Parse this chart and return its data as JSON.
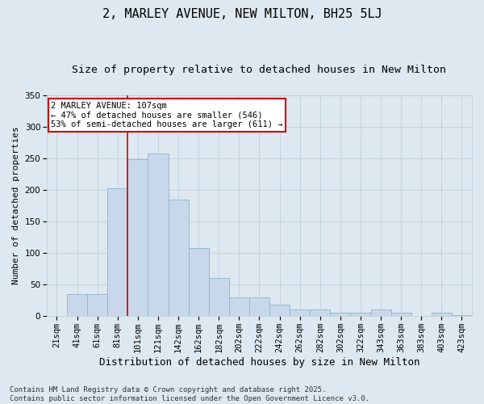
{
  "title": "2, MARLEY AVENUE, NEW MILTON, BH25 5LJ",
  "subtitle": "Size of property relative to detached houses in New Milton",
  "xlabel": "Distribution of detached houses by size in New Milton",
  "ylabel": "Number of detached properties",
  "bin_labels": [
    "21sqm",
    "41sqm",
    "61sqm",
    "81sqm",
    "101sqm",
    "121sqm",
    "142sqm",
    "162sqm",
    "182sqm",
    "202sqm",
    "222sqm",
    "242sqm",
    "262sqm",
    "282sqm",
    "302sqm",
    "322sqm",
    "343sqm",
    "363sqm",
    "383sqm",
    "403sqm",
    "423sqm"
  ],
  "bar_values": [
    0,
    35,
    35,
    202,
    248,
    258,
    185,
    108,
    60,
    30,
    30,
    18,
    10,
    10,
    5,
    5,
    10,
    5,
    0,
    5,
    2
  ],
  "bar_color": "#c8d8ea",
  "bar_edgecolor": "#90b4d0",
  "vline_index": 4,
  "annotation_text": "2 MARLEY AVENUE: 107sqm\n← 47% of detached houses are smaller (546)\n53% of semi-detached houses are larger (611) →",
  "annotation_box_facecolor": "white",
  "annotation_box_edgecolor": "#cc0000",
  "vline_color": "#cc0000",
  "ylim": [
    0,
    350
  ],
  "yticks": [
    0,
    50,
    100,
    150,
    200,
    250,
    300,
    350
  ],
  "footnote": "Contains HM Land Registry data © Crown copyright and database right 2025.\nContains public sector information licensed under the Open Government Licence v3.0.",
  "bg_color": "#dde8f0",
  "plot_bg_color": "#dde8f0",
  "grid_color": "#b8ccd8",
  "title_fontsize": 11,
  "subtitle_fontsize": 9.5,
  "xlabel_fontsize": 9,
  "ylabel_fontsize": 8,
  "tick_fontsize": 7.5,
  "annotation_fontsize": 7.5,
  "footnote_fontsize": 6.5
}
